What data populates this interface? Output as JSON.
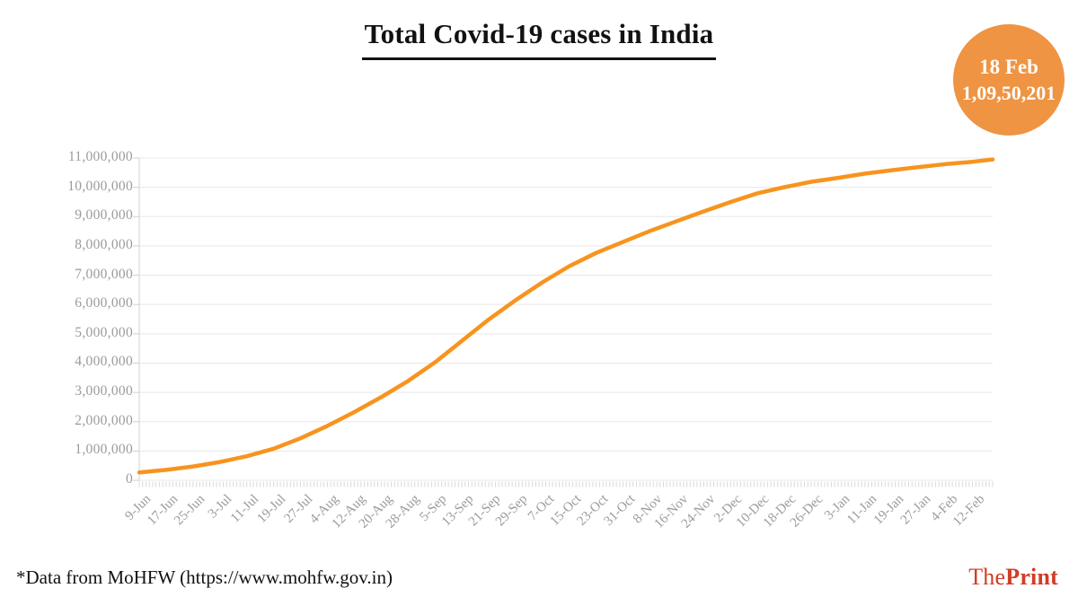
{
  "title": "Total Covid-19 cases in India",
  "badge": {
    "date": "18 Feb",
    "value": "1,09,50,201",
    "bg_color": "#EF9443",
    "text_color": "#FFFFFF"
  },
  "footer": {
    "source_note": "*Data from MoHFW (https://www.mohfw.gov.in)",
    "logo_the": "The",
    "logo_print": "Print",
    "logo_color": "#D23C26"
  },
  "chart_data": {
    "type": "line",
    "title": "Total Covid-19 cases in India",
    "x": [
      "9-Jun",
      "17-Jun",
      "25-Jun",
      "3-Jul",
      "11-Jul",
      "19-Jul",
      "27-Jul",
      "4-Aug",
      "12-Aug",
      "20-Aug",
      "28-Aug",
      "5-Sep",
      "13-Sep",
      "21-Sep",
      "29-Sep",
      "7-Oct",
      "15-Oct",
      "23-Oct",
      "31-Oct",
      "8-Nov",
      "16-Nov",
      "24-Nov",
      "2-Dec",
      "10-Dec",
      "18-Dec",
      "26-Dec",
      "3-Jan",
      "11-Jan",
      "19-Jan",
      "27-Jan",
      "4-Feb",
      "12-Feb"
    ],
    "values": [
      266598,
      354065,
      473105,
      625544,
      820916,
      1077618,
      1435453,
      1855745,
      2329638,
      2836925,
      3387500,
      4023179,
      4754356,
      5487580,
      6145291,
      6757131,
      7307097,
      7761312,
      8137119,
      8507754,
      8845127,
      9177840,
      9499413,
      9796769,
      10004599,
      10187850,
      10323965,
      10466595,
      10581837,
      10689527,
      10790183,
      10871294
    ],
    "endpoint": {
      "label": "18 Feb",
      "value": 10950201,
      "days_after_last_tick": 6
    },
    "x_tick_interval_days": 8,
    "x_minor_ticks": "daily",
    "y_ticks": [
      "0",
      "1,000,000",
      "2,000,000",
      "3,000,000",
      "4,000,000",
      "5,000,000",
      "6,000,000",
      "7,000,000",
      "8,000,000",
      "9,000,000",
      "10,000,000",
      "11,000,000"
    ],
    "ylim": [
      0,
      11000000
    ],
    "xlabel": "",
    "ylabel": "",
    "line_color": "#F7941E",
    "grid": true,
    "grid_color": "#e8e8e8",
    "axis_color": "#d9d9d9",
    "tick_label_color": "#9b9b9b",
    "legend": false
  }
}
